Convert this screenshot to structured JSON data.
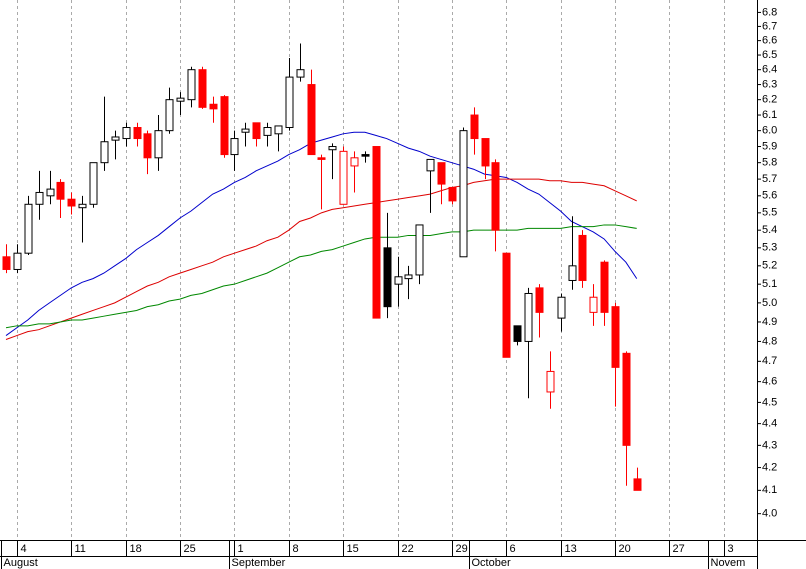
{
  "chart_data": {
    "type": "candlestick",
    "log_scale": true,
    "grid": "x",
    "up_color": "#000000",
    "down_color": "#ff0000",
    "hollow_fill": "#ffffff",
    "grid_color": "#aaaaaa",
    "ylim": [
      3.89,
      6.89
    ],
    "yticks": [
      {
        "value": 4,
        "label": "4.0"
      },
      4.1,
      4.2,
      4.3,
      4.4,
      4.5,
      4.6,
      4.7,
      4.8,
      4.9,
      {
        "value": 5,
        "label": "5.0"
      },
      5.1,
      5.2,
      5.3,
      5.4,
      5.5,
      5.6,
      5.7,
      5.8,
      5.9,
      {
        "value": 6,
        "label": "6.0"
      },
      6.1,
      6.2,
      6.3,
      6.4,
      6.5,
      6.6,
      6.7,
      6.8
    ],
    "categories": [
      null,
      "4",
      null,
      null,
      null,
      null,
      "11",
      null,
      null,
      null,
      null,
      "18",
      null,
      null,
      null,
      null,
      "25",
      null,
      null,
      null,
      null,
      "1",
      null,
      null,
      null,
      null,
      "8",
      null,
      null,
      null,
      null,
      "15",
      null,
      null,
      null,
      null,
      "22",
      null,
      null,
      null,
      null,
      "29",
      null,
      null,
      null,
      null,
      "6",
      null,
      null,
      null,
      null,
      "13",
      null,
      null,
      null,
      null,
      "20",
      null,
      null,
      null,
      null,
      "27",
      null,
      null,
      null,
      null,
      "3",
      null,
      null
    ],
    "months": [
      "August",
      null,
      null,
      null,
      null,
      null,
      null,
      null,
      null,
      null,
      null,
      null,
      null,
      null,
      null,
      null,
      null,
      null,
      null,
      null,
      null,
      "September",
      null,
      null,
      null,
      null,
      null,
      null,
      null,
      null,
      null,
      null,
      null,
      null,
      null,
      null,
      null,
      null,
      null,
      null,
      null,
      null,
      null,
      "October",
      null,
      null,
      null,
      null,
      null,
      null,
      null,
      null,
      null,
      null,
      null,
      null,
      null,
      null,
      null,
      null,
      null,
      null,
      null,
      null,
      null,
      "Novem",
      null,
      null
    ],
    "open": [
      5.25,
      5.18,
      5.27,
      5.55,
      5.6,
      5.68,
      5.58,
      5.53,
      5.55,
      5.8,
      5.94,
      5.95,
      6.02,
      5.98,
      5.83,
      6.0,
      6.19,
      6.2,
      6.4,
      6.17,
      6.22,
      5.85,
      5.99,
      6.05,
      5.97,
      5.98,
      6.02,
      6.35,
      6.3,
      5.83,
      5.88,
      5.55,
      5.78,
      5.85,
      5.9,
      5.3,
      5.1,
      5.13,
      5.15,
      5.75,
      5.8,
      5.65,
      5.25,
      6.1,
      5.95,
      5.8,
      5.27,
      4.88,
      4.8,
      5.08,
      4.55,
      4.92,
      5.12,
      5.37,
      4.95,
      5.22,
      4.98,
      4.74,
      4.15,
      null,
      null,
      null,
      null,
      null,
      null,
      null,
      null,
      null,
      null
    ],
    "high": [
      5.32,
      5.32,
      5.6,
      5.75,
      5.75,
      5.7,
      5.62,
      5.6,
      5.8,
      6.22,
      6.0,
      6.05,
      6.05,
      6.0,
      6.1,
      6.28,
      6.25,
      6.42,
      6.42,
      6.22,
      6.23,
      6.0,
      6.05,
      6.05,
      6.05,
      6.03,
      6.48,
      6.58,
      6.4,
      5.85,
      5.92,
      5.9,
      5.87,
      5.87,
      5.9,
      5.5,
      5.25,
      5.2,
      5.43,
      5.82,
      5.8,
      5.65,
      6.02,
      6.15,
      5.95,
      5.82,
      5.27,
      4.88,
      5.08,
      5.1,
      4.75,
      5.05,
      5.48,
      5.4,
      5.1,
      5.23,
      5.0,
      4.75,
      4.2,
      null,
      null,
      null,
      null,
      null,
      null,
      null,
      null,
      null,
      null
    ],
    "low": [
      5.16,
      5.16,
      5.26,
      5.46,
      5.55,
      5.47,
      5.49,
      5.33,
      5.53,
      5.75,
      5.82,
      5.9,
      5.9,
      5.73,
      5.75,
      5.98,
      6.1,
      6.15,
      6.14,
      6.05,
      5.83,
      5.75,
      5.9,
      5.9,
      5.9,
      5.87,
      6.0,
      6.32,
      5.85,
      5.52,
      5.7,
      5.55,
      5.62,
      5.8,
      4.92,
      4.92,
      4.98,
      5.02,
      5.1,
      5.5,
      5.55,
      5.55,
      5.25,
      5.85,
      5.7,
      5.28,
      4.72,
      4.78,
      4.52,
      4.82,
      4.47,
      4.85,
      5.07,
      5.08,
      4.88,
      4.88,
      4.48,
      4.12,
      4.1,
      null,
      null,
      null,
      null,
      null,
      null,
      null,
      null,
      null,
      null
    ],
    "close": [
      5.18,
      5.27,
      5.55,
      5.62,
      5.64,
      5.58,
      5.54,
      5.55,
      5.8,
      5.93,
      5.96,
      6.02,
      5.95,
      5.83,
      6.0,
      6.2,
      6.21,
      6.4,
      6.15,
      6.14,
      5.85,
      5.95,
      6.01,
      5.95,
      6.02,
      6.03,
      6.35,
      6.4,
      5.85,
      5.82,
      5.9,
      5.87,
      5.83,
      5.84,
      4.92,
      4.98,
      5.14,
      5.15,
      5.43,
      5.82,
      5.67,
      5.57,
      6.0,
      5.95,
      5.78,
      5.4,
      4.72,
      4.8,
      5.05,
      4.95,
      4.65,
      5.03,
      5.2,
      5.12,
      5.03,
      4.95,
      4.67,
      4.3,
      4.1,
      null,
      null,
      null,
      null,
      null,
      null,
      null,
      null,
      null,
      null
    ],
    "lines": [
      {
        "color": "#0000cc",
        "values": [
          4.83,
          4.87,
          4.91,
          4.96,
          5.0,
          5.04,
          5.08,
          5.11,
          5.13,
          5.16,
          5.2,
          5.24,
          5.29,
          5.33,
          5.37,
          5.42,
          5.47,
          5.51,
          5.56,
          5.61,
          5.64,
          5.68,
          5.71,
          5.75,
          5.78,
          5.81,
          5.85,
          5.88,
          5.92,
          5.94,
          5.96,
          5.98,
          5.99,
          5.99,
          5.97,
          5.95,
          5.92,
          5.89,
          5.87,
          5.84,
          5.82,
          5.8,
          5.78,
          5.76,
          5.73,
          5.72,
          5.71,
          5.68,
          5.64,
          5.61,
          5.56,
          5.51,
          5.45,
          5.42,
          5.39,
          5.35,
          5.28,
          5.22,
          5.13,
          null,
          null,
          null,
          null,
          null,
          null,
          null,
          null,
          null,
          null
        ]
      },
      {
        "color": "#dd0000",
        "values": [
          4.81,
          4.83,
          4.85,
          4.86,
          4.88,
          4.9,
          4.92,
          4.94,
          4.96,
          4.98,
          5.0,
          5.03,
          5.06,
          5.09,
          5.11,
          5.14,
          5.16,
          5.18,
          5.2,
          5.22,
          5.25,
          5.27,
          5.29,
          5.31,
          5.34,
          5.36,
          5.4,
          5.45,
          5.47,
          5.5,
          5.52,
          5.53,
          5.54,
          5.55,
          5.56,
          5.57,
          5.58,
          5.59,
          5.6,
          5.61,
          5.63,
          5.65,
          5.66,
          5.68,
          5.69,
          5.7,
          5.7,
          5.7,
          5.7,
          5.7,
          5.69,
          5.69,
          5.68,
          5.68,
          5.67,
          5.66,
          5.63,
          5.6,
          5.57,
          null,
          null,
          null,
          null,
          null,
          null,
          null,
          null,
          null,
          null
        ]
      },
      {
        "color": "#008800",
        "values": [
          4.87,
          4.88,
          4.88,
          4.89,
          4.89,
          4.9,
          4.91,
          4.91,
          4.92,
          4.93,
          4.94,
          4.95,
          4.96,
          4.98,
          4.99,
          5.01,
          5.02,
          5.04,
          5.05,
          5.07,
          5.09,
          5.1,
          5.12,
          5.14,
          5.16,
          5.19,
          5.22,
          5.25,
          5.26,
          5.28,
          5.29,
          5.31,
          5.33,
          5.35,
          5.36,
          5.36,
          5.36,
          5.37,
          5.37,
          5.37,
          5.38,
          5.39,
          5.39,
          5.4,
          5.4,
          5.4,
          5.4,
          5.4,
          5.41,
          5.41,
          5.41,
          5.41,
          5.42,
          5.42,
          5.42,
          5.43,
          5.43,
          5.42,
          5.41,
          null,
          null,
          null,
          null,
          null,
          null,
          null,
          null,
          null,
          null
        ]
      }
    ]
  }
}
